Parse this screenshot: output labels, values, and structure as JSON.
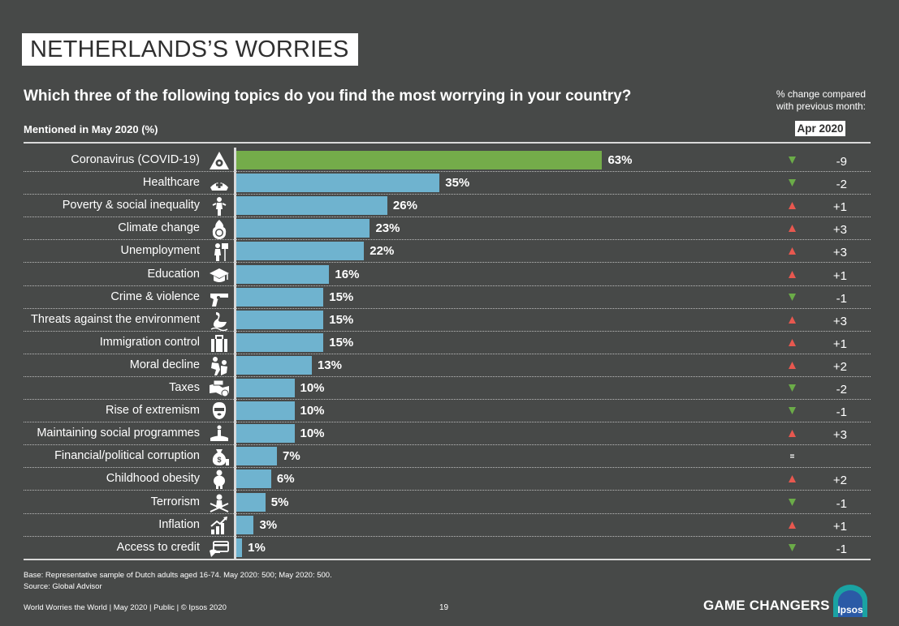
{
  "header": {
    "title": "NETHERLANDS’S WORRIES",
    "question": "Which three of the following topics do you find the most worrying in your country?",
    "change_note_line1": "% change compared",
    "change_note_line2": "with previous month:",
    "subhead": "Mentioned in May 2020 (%)",
    "period": "Apr 2020"
  },
  "colors": {
    "background": "#474948",
    "bar": "#6fb3cf",
    "highlight_bar": "#74ac4a",
    "up": "#e8584f",
    "down": "#6bac48"
  },
  "chart_data": {
    "type": "bar",
    "orientation": "horizontal",
    "title": "Which three of the following topics do you find the most worrying in your country?",
    "xlabel": "Mentioned in May 2020 (%)",
    "ylabel": "",
    "xlim": [
      0,
      100
    ],
    "categories": [
      "Coronavirus (COVID-19)",
      "Healthcare",
      "Poverty & social inequality",
      "Climate change",
      "Unemployment",
      "Education",
      "Crime & violence",
      "Threats against the environment",
      "Immigration control",
      "Moral decline",
      "Taxes",
      "Rise of extremism",
      "Maintaining social programmes",
      "Financial/political corruption",
      "Childhood obesity",
      "Terrorism",
      "Inflation",
      "Access to credit"
    ],
    "values": [
      63,
      35,
      26,
      23,
      22,
      16,
      15,
      15,
      15,
      13,
      10,
      10,
      10,
      7,
      6,
      5,
      3,
      1
    ],
    "value_labels": [
      "63%",
      "35%",
      "26%",
      "23%",
      "22%",
      "16%",
      "15%",
      "15%",
      "15%",
      "13%",
      "10%",
      "10%",
      "10%",
      "7%",
      "6%",
      "5%",
      "3%",
      "1%"
    ],
    "change_header": "Apr 2020",
    "changes": [
      "-9",
      "-2",
      "+1",
      "+3",
      "+3",
      "+1",
      "-1",
      "+3",
      "+1",
      "+2",
      "-2",
      "-1",
      "+3",
      "",
      "+2",
      "-1",
      "+1",
      "-1"
    ],
    "trend": [
      "down",
      "down",
      "up",
      "up",
      "up",
      "up",
      "down",
      "up",
      "up",
      "up",
      "down",
      "down",
      "up",
      "same",
      "up",
      "down",
      "up",
      "down"
    ],
    "icons": [
      "biohazard-icon",
      "nurse-cap-icon",
      "poor-person-icon",
      "burning-globe-icon",
      "unemployed-person-icon",
      "graduation-cap-icon",
      "revolver-icon",
      "polluted-swan-icon",
      "suitcase-icon",
      "riot-icon",
      "money-handshake-icon",
      "balaclava-icon",
      "social-support-icon",
      "money-bag-icon",
      "obese-child-icon",
      "terrorist-icon",
      "inflation-chart-icon",
      "credit-card-icon"
    ],
    "highlight_index": 0
  },
  "notes": {
    "base": "Base: Representative sample of Dutch adults aged 16-74. May 2020: 500; May 2020: 500.",
    "source": "Source: Global Advisor"
  },
  "footer": {
    "left": "World Worries the World | May 2020 | Public | © Ipsos 2020",
    "page": "19",
    "brand": "GAME CHANGERS",
    "logo_text": "Ipsos"
  }
}
